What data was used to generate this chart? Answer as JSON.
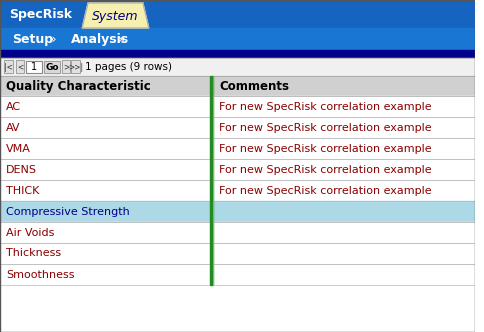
{
  "title_bar": {
    "specrisk_text": "SpecRisk",
    "system_text": "System",
    "bg_color": "#1565C0",
    "tab_active_color": "#f0e68c",
    "tab_inactive_color": "#1565C0",
    "text_color": "#ffffff",
    "active_text_color": "#000000"
  },
  "nav_bar": {
    "bg_color": "#1976D2",
    "setup_text": "Setup",
    "analysis_text": "Analysis",
    "text_color": "#ffffff"
  },
  "dark_bar_color": "#00008B",
  "pagination_text": "1 pages (9 rows)",
  "col_header_bg": "#d0d0d0",
  "col_header_text": "#000000",
  "col1_header": "Quality Characteristic",
  "col2_header": "Comments",
  "col_divider_color": "#228B22",
  "rows": [
    {
      "name": "AC",
      "comment": "For new SpecRisk correlation example",
      "highlight": false,
      "name_color": "#8B0000"
    },
    {
      "name": "AV",
      "comment": "For new SpecRisk correlation example",
      "highlight": false,
      "name_color": "#8B0000"
    },
    {
      "name": "VMA",
      "comment": "For new SpecRisk correlation example",
      "highlight": false,
      "name_color": "#8B0000"
    },
    {
      "name": "DENS",
      "comment": "For new SpecRisk correlation example",
      "highlight": false,
      "name_color": "#8B0000"
    },
    {
      "name": "THICK",
      "comment": "For new SpecRisk correlation example",
      "highlight": false,
      "name_color": "#8B0000"
    },
    {
      "name": "Compressive Strength",
      "comment": "",
      "highlight": true,
      "name_color": "#00008B"
    },
    {
      "name": "Air Voids",
      "comment": "",
      "highlight": false,
      "name_color": "#8B0000"
    },
    {
      "name": "Thickness",
      "comment": "",
      "highlight": false,
      "name_color": "#8B0000"
    },
    {
      "name": "Smoothness",
      "comment": "",
      "highlight": false,
      "name_color": "#8B0000"
    }
  ],
  "row_bg_normal": "#ffffff",
  "row_bg_highlight": "#add8e6",
  "row_border_color": "#a0a0a0",
  "comment_text_color": "#8B0000",
  "fig_bg": "#ffffff",
  "outer_border_color": "#555555"
}
